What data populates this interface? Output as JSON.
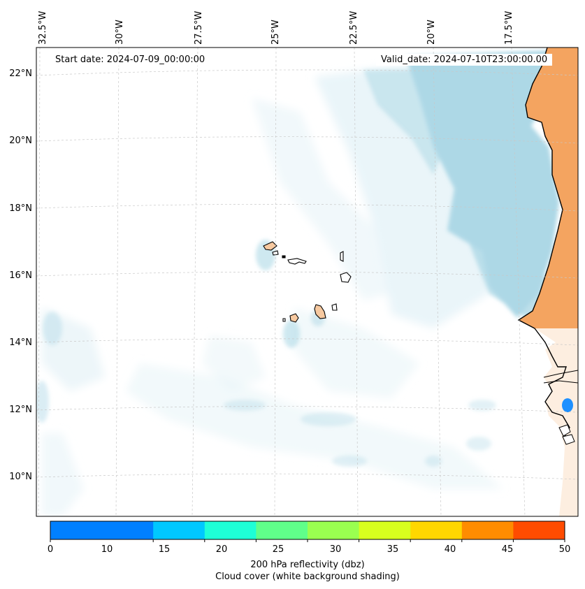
{
  "header": {
    "start_date": "Start date: 2024-07-09_00:00:00",
    "valid_date": "Valid_date: 2024-07-10T23:00:00.00"
  },
  "map": {
    "lon_labels": [
      "32.5°W",
      "30°W",
      "27.5°W",
      "25°W",
      "22.5°W",
      "20°W",
      "17.5°W"
    ],
    "lat_labels": [
      "22°N",
      "20°N",
      "18°N",
      "16°N",
      "14°N",
      "12°N",
      "10°N"
    ],
    "colors": {
      "ocean": "#ffffff",
      "cloud_thick": "#add8e6",
      "cloud_thin": "#e8f4f8",
      "land_warm": "#f4a460",
      "land_light": "#f6c9a0",
      "gridline": "#c8c8c8",
      "coastline": "#000000",
      "reflectivity_cell": "#1e90ff"
    },
    "features": {
      "cloud_layer": "cloud-cover-shading",
      "land": "africa-coast",
      "islands": "cape-verde-islands",
      "reflectivity": "reflectivity-cell"
    }
  },
  "colorbar": {
    "bins": [
      {
        "from": 0,
        "to": 5,
        "color": "#0080ff"
      },
      {
        "from": 5,
        "to": 10,
        "color": "#0080ff"
      },
      {
        "from": 10,
        "to": 15,
        "color": "#00c8ff"
      },
      {
        "from": 15,
        "to": 20,
        "color": "#1effd7"
      },
      {
        "from": 20,
        "to": 25,
        "color": "#60ff8a"
      },
      {
        "from": 25,
        "to": 30,
        "color": "#9aff50"
      },
      {
        "from": 30,
        "to": 35,
        "color": "#d8ff1e"
      },
      {
        "from": 35,
        "to": 40,
        "color": "#ffd700"
      },
      {
        "from": 40,
        "to": 45,
        "color": "#ff8c00"
      },
      {
        "from": 45,
        "to": 50,
        "color": "#ff4c00"
      }
    ],
    "ticks": [
      "0",
      "10",
      "15",
      "20",
      "25",
      "30",
      "35",
      "40",
      "45",
      "50"
    ],
    "label_line1": "200 hPa reflectivity (dbz)",
    "label_line2": "Cloud cover (white background shading)"
  }
}
